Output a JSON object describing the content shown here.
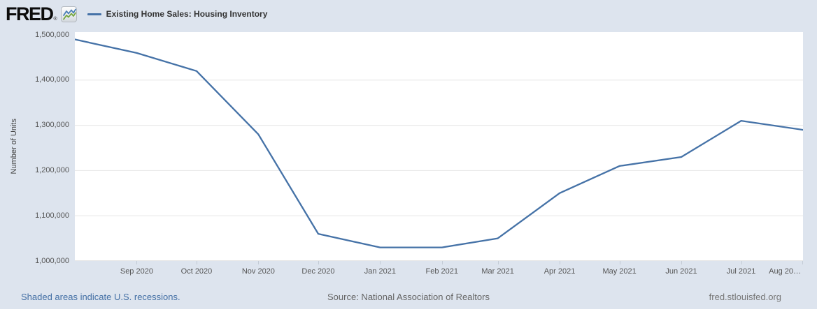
{
  "header": {
    "logo_text": "FRED",
    "registered_mark": "®",
    "legend_label": "Existing Home Sales: Housing Inventory"
  },
  "footer": {
    "recessions_note": "Shaded areas indicate U.S. recessions.",
    "source": "Source: National Association of Realtors",
    "site": "fred.stlouisfed.org"
  },
  "colors": {
    "background": "#dde4ee",
    "plot_background": "#ffffff",
    "grid": "#e6e6e6",
    "series": "#4572a7",
    "link_blue": "#4470a5",
    "source_text": "#666666",
    "site_text": "#777777",
    "axis_text": "#555555",
    "tick_mark": "#c3cbd5",
    "logo_icon_blue": "#4a7fb5",
    "logo_icon_green": "#74a63f"
  },
  "chart_data": {
    "type": "line",
    "title": "Existing Home Sales: Housing Inventory",
    "xlabel": "",
    "ylabel": "Number of Units",
    "ylim": [
      1000000,
      1500000
    ],
    "xlim": [
      "2020-08-01",
      "2021-08-01"
    ],
    "grid": "horizontal",
    "legend_position": "top-left-header",
    "series": [
      {
        "name": "Existing Home Sales: Housing Inventory",
        "color": "#4572a7",
        "x": [
          "2020-08-01",
          "2020-09-01",
          "2020-10-01",
          "2020-11-01",
          "2020-12-01",
          "2021-01-01",
          "2021-02-01",
          "2021-03-01",
          "2021-04-01",
          "2021-05-01",
          "2021-06-01",
          "2021-07-01",
          "2021-08-01"
        ],
        "values": [
          1490000,
          1460000,
          1420000,
          1280000,
          1060000,
          1030000,
          1030000,
          1050000,
          1150000,
          1210000,
          1230000,
          1310000,
          1290000
        ]
      }
    ],
    "y_ticks": [
      {
        "value": 1500000,
        "label": "1,500,000"
      },
      {
        "value": 1400000,
        "label": "1,400,000"
      },
      {
        "value": 1300000,
        "label": "1,300,000"
      },
      {
        "value": 1200000,
        "label": "1,200,000"
      },
      {
        "value": 1100000,
        "label": "1,100,000"
      },
      {
        "value": 1000000,
        "label": "1,000,000"
      }
    ],
    "x_ticks": [
      {
        "date": "2020-09-01",
        "label": "Sep 2020"
      },
      {
        "date": "2020-10-01",
        "label": "Oct 2020"
      },
      {
        "date": "2020-11-01",
        "label": "Nov 2020"
      },
      {
        "date": "2020-12-01",
        "label": "Dec 2020"
      },
      {
        "date": "2021-01-01",
        "label": "Jan 2021"
      },
      {
        "date": "2021-02-01",
        "label": "Feb 2021"
      },
      {
        "date": "2021-03-01",
        "label": "Mar 2021"
      },
      {
        "date": "2021-04-01",
        "label": "Apr 2021"
      },
      {
        "date": "2021-05-01",
        "label": "May 2021"
      },
      {
        "date": "2021-06-01",
        "label": "Jun 2021"
      },
      {
        "date": "2021-07-01",
        "label": "Jul 2021"
      },
      {
        "date": "2021-08-01",
        "label": "Aug 20…",
        "clipped": true
      }
    ]
  }
}
